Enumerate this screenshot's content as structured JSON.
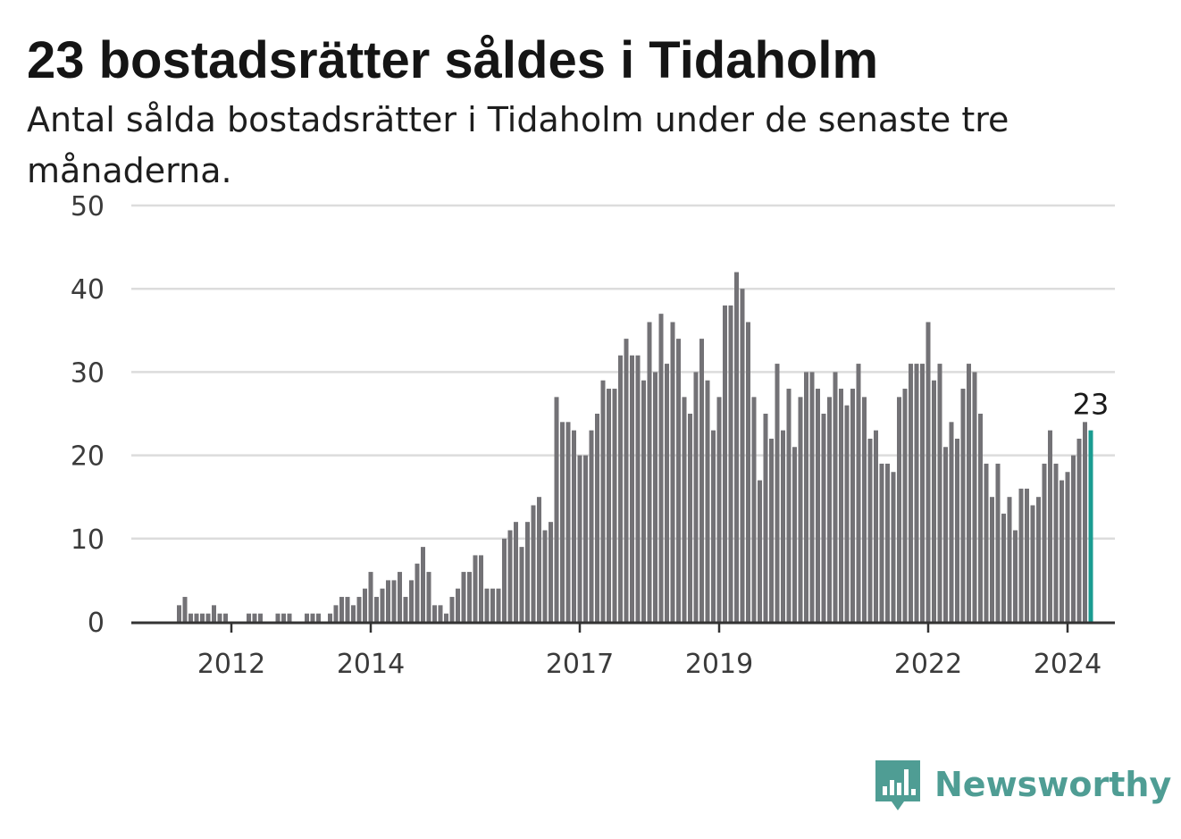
{
  "header": {
    "title": "23 bostadsrätter såldes i Tidaholm",
    "subtitle": "Antal sålda bostadsrätter i Tidaholm under de senaste tre månaderna."
  },
  "brand": {
    "name": "Newsworthy",
    "icon": "newsworthy-logo-icon",
    "color": "#4f9d94"
  },
  "colors": {
    "bars": "#737276",
    "highlight": "#1a9c91",
    "grid": "#dcdcdc",
    "axis": "#333333"
  },
  "chart_data": {
    "type": "bar",
    "title": "23 bostadsrätter såldes i Tidaholm",
    "subtitle": "Antal sålda bostadsrätter i Tidaholm under de senaste tre månaderna.",
    "xlabel": "",
    "ylabel": "",
    "ylim": [
      0,
      50
    ],
    "yticks": [
      0,
      10,
      20,
      30,
      40,
      50
    ],
    "grid": true,
    "legend": "none",
    "x_start": "2011-04",
    "x_end": "2024-10",
    "x_ticks": [
      {
        "label": "2012",
        "date": "2012-01"
      },
      {
        "label": "2014",
        "date": "2014-01"
      },
      {
        "label": "2017",
        "date": "2017-01"
      },
      {
        "label": "2019",
        "date": "2019-01"
      },
      {
        "label": "2022",
        "date": "2022-01"
      },
      {
        "label": "2024",
        "date": "2024-01"
      }
    ],
    "values": [
      2,
      3,
      1,
      1,
      1,
      1,
      2,
      1,
      1,
      0,
      0,
      0,
      1,
      1,
      1,
      0,
      0,
      1,
      1,
      1,
      0,
      0,
      1,
      1,
      1,
      0,
      1,
      2,
      3,
      3,
      2,
      3,
      4,
      6,
      3,
      4,
      5,
      5,
      6,
      3,
      5,
      7,
      9,
      6,
      2,
      2,
      1,
      3,
      4,
      6,
      6,
      8,
      8,
      4,
      4,
      4,
      10,
      11,
      12,
      9,
      12,
      14,
      15,
      11,
      12,
      27,
      24,
      24,
      23,
      20,
      20,
      23,
      25,
      29,
      28,
      28,
      32,
      34,
      32,
      32,
      29,
      36,
      30,
      37,
      31,
      36,
      34,
      27,
      25,
      30,
      34,
      29,
      23,
      27,
      38,
      38,
      42,
      40,
      36,
      27,
      17,
      25,
      22,
      31,
      23,
      28,
      21,
      27,
      30,
      30,
      28,
      25,
      27,
      30,
      28,
      26,
      28,
      31,
      27,
      22,
      23,
      19,
      19,
      18,
      27,
      28,
      31,
      31,
      31,
      36,
      29,
      31,
      21,
      24,
      22,
      28,
      31,
      30,
      25,
      19,
      15,
      19,
      13,
      15,
      11,
      16,
      16,
      14,
      15,
      19,
      23,
      19,
      17,
      18,
      20,
      22,
      24,
      23
    ],
    "highlight": {
      "value": 23,
      "label": "23",
      "position": "last"
    }
  }
}
